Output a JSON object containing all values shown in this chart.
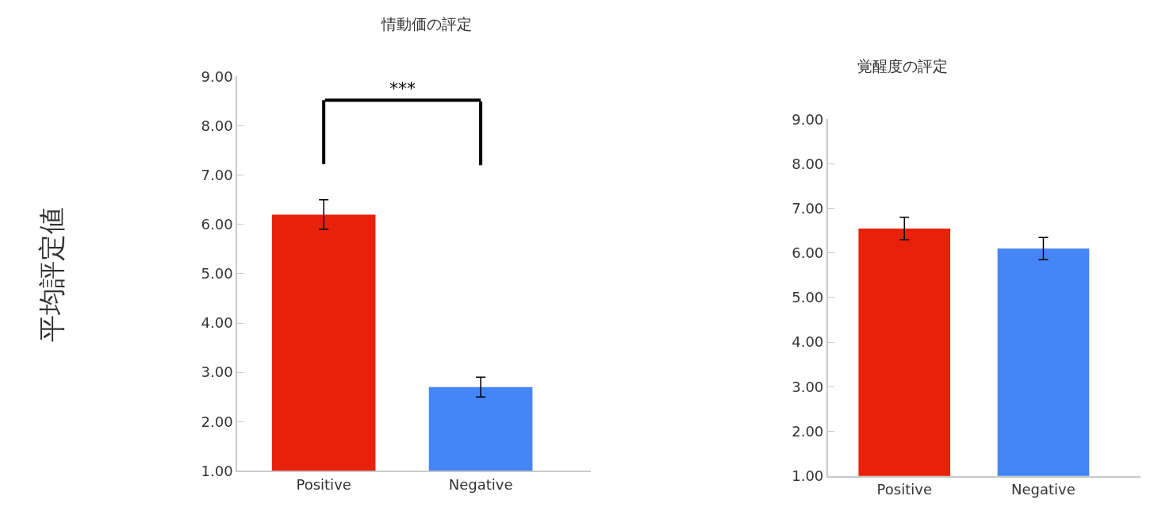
{
  "chart_data": [
    {
      "type": "bar",
      "title": "情動価の評定",
      "ylabel": "平均評定値",
      "categories": [
        "Positive",
        "Negative"
      ],
      "values": [
        6.2,
        2.7
      ],
      "colors": [
        "#e8210a",
        "#4485f8"
      ],
      "errors": [
        0.3,
        0.2
      ],
      "ylim": [
        1,
        9
      ],
      "yticks": [
        {
          "value": 1,
          "label": "1.00"
        },
        {
          "value": 2,
          "label": "2.00"
        },
        {
          "value": 3,
          "label": "3.00"
        },
        {
          "value": 4,
          "label": "4.00"
        },
        {
          "value": 5,
          "label": "5.00"
        },
        {
          "value": 6,
          "label": "6.00"
        },
        {
          "value": 7,
          "label": "7.00"
        },
        {
          "value": 8,
          "label": "8.00"
        },
        {
          "value": 9,
          "label": "9.00"
        }
      ],
      "annotations": [
        "***"
      ]
    },
    {
      "type": "bar",
      "title": "覚醒度の評定",
      "categories": [
        "Positive",
        "Negative"
      ],
      "values": [
        6.55,
        6.1
      ],
      "colors": [
        "#e8210a",
        "#4485f8"
      ],
      "errors": [
        0.25,
        0.25
      ],
      "ylim": [
        1,
        9
      ],
      "yticks": [
        {
          "value": 1,
          "label": "1.00"
        },
        {
          "value": 2,
          "label": "2.00"
        },
        {
          "value": 3,
          "label": "3.00"
        },
        {
          "value": 4,
          "label": "4.00"
        },
        {
          "value": 5,
          "label": "5.00"
        },
        {
          "value": 6,
          "label": "6.00"
        },
        {
          "value": 7,
          "label": "7.00"
        },
        {
          "value": 8,
          "label": "8.00"
        },
        {
          "value": 9,
          "label": "9.00"
        }
      ],
      "ylabel": null
    }
  ]
}
